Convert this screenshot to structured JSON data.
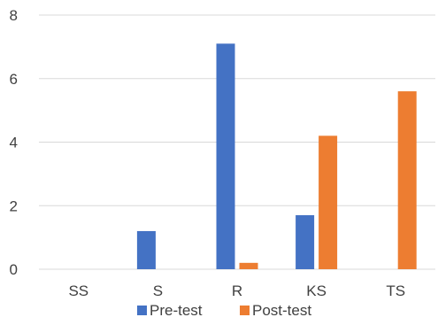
{
  "chart_data": {
    "type": "bar",
    "title": "",
    "xlabel": "",
    "ylabel": "",
    "categories": [
      "SS",
      "S",
      "R",
      "KS",
      "TS"
    ],
    "series": [
      {
        "name": "Pre-test",
        "color": "#4472C4",
        "values": [
          0,
          1.2,
          7.1,
          1.7,
          0
        ]
      },
      {
        "name": "Post-test",
        "color": "#ED7D31",
        "values": [
          0,
          0,
          0.2,
          4.2,
          5.6
        ]
      }
    ],
    "ylim": [
      0,
      8
    ],
    "yticks": [
      "0",
      "2",
      "4",
      "6",
      "8"
    ],
    "grid": true,
    "legend": "bottom"
  }
}
